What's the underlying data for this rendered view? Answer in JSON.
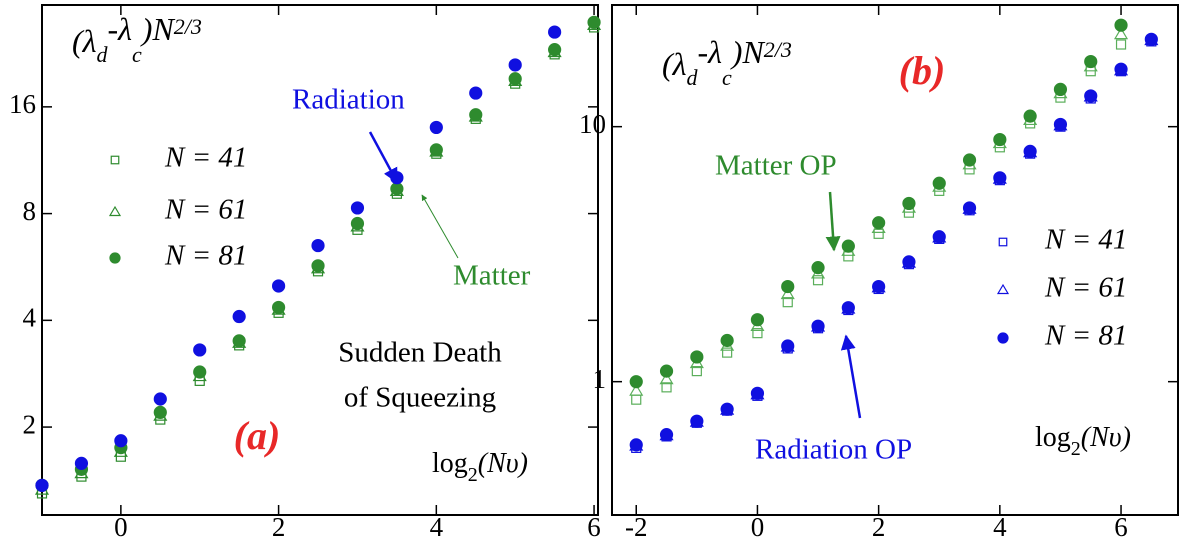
{
  "chart_data": [
    {
      "type": "scatter",
      "yscale": "log",
      "panel_label": "(a)",
      "ylabel": [
        "(λ",
        "d",
        "-λ",
        "c",
        ")N",
        "2/3"
      ],
      "xlabel": [
        "log",
        "2",
        "(Nυ)"
      ],
      "annotations": [
        "Radiation",
        "Matter",
        "Sudden Death",
        "of Squeezing"
      ],
      "xlim": [
        -1,
        6.05
      ],
      "ylim": [
        1.13,
        31
      ],
      "xticks": [
        0,
        2,
        4,
        6
      ],
      "yticks": [
        2,
        4,
        8,
        16
      ],
      "x": [
        -1,
        -0.5,
        0,
        0.5,
        1,
        1.5,
        2,
        2.5,
        3,
        3.5,
        4,
        4.5,
        5,
        5.5,
        6
      ],
      "series": [
        {
          "name": "N = 41",
          "color": "#2e8b2e",
          "marker": "square",
          "values": [
            1.3,
            1.45,
            1.65,
            2.1,
            2.7,
            3.4,
            4.2,
            5.5,
            7.2,
            9.1,
            11.8,
            14.8,
            18.6,
            22.5,
            26.8
          ]
        },
        {
          "name": "N = 61",
          "color": "#2e8b2e",
          "marker": "triangle",
          "values": [
            1.33,
            1.48,
            1.7,
            2.15,
            2.78,
            3.45,
            4.28,
            5.6,
            7.35,
            9.25,
            11.95,
            15.0,
            18.9,
            22.8,
            27.2
          ]
        },
        {
          "name": "N = 81",
          "color": "#2e8b2e",
          "marker": "circle",
          "values": [
            1.37,
            1.52,
            1.75,
            2.2,
            2.86,
            3.5,
            4.35,
            5.7,
            7.5,
            9.4,
            12.1,
            15.2,
            19.2,
            23.2,
            27.7
          ]
        },
        {
          "color": "#1010e0",
          "marker": "circle",
          "values": [
            1.37,
            1.58,
            1.83,
            2.4,
            3.3,
            4.1,
            5.0,
            6.5,
            8.3,
            10.1,
            14,
            17.5,
            21,
            26,
            null
          ]
        }
      ]
    },
    {
      "type": "scatter",
      "yscale": "log",
      "panel_label": "(b)",
      "ylabel": [
        "(λ",
        "d",
        "-λ",
        "c",
        ")N",
        "2/3"
      ],
      "xlabel": [
        "log",
        "2",
        "(Nυ)"
      ],
      "annotations": [
        "Matter OP",
        "Radiation OP"
      ],
      "xlim": [
        -2.4,
        6.94
      ],
      "ylim": [
        0.3,
        30
      ],
      "xticks": [
        -2,
        0,
        2,
        4,
        6
      ],
      "yticks": [
        1,
        10
      ],
      "x": [
        -2,
        -1.5,
        -1,
        -0.5,
        0,
        0.5,
        1,
        1.5,
        2,
        2.5,
        3,
        3.5,
        4,
        4.5,
        5,
        5.5,
        6,
        6.5
      ],
      "series": [
        {
          "color": "#5aae5a",
          "marker": "square",
          "values": [
            0.85,
            0.95,
            1.1,
            1.3,
            1.55,
            2.05,
            2.5,
            3.1,
            3.8,
            4.6,
            5.6,
            6.8,
            8.3,
            10.3,
            13,
            16.5,
            21,
            null
          ]
        },
        {
          "color": "#5aae5a",
          "marker": "triangle",
          "values": [
            0.92,
            1.02,
            1.18,
            1.38,
            1.65,
            2.2,
            2.65,
            3.25,
            4.0,
            4.8,
            5.8,
            7.1,
            8.6,
            10.6,
            13.5,
            17.2,
            23,
            null
          ]
        },
        {
          "color": "#2e8b2e",
          "marker": "circle",
          "values": [
            1.0,
            1.1,
            1.25,
            1.45,
            1.75,
            2.36,
            2.8,
            3.4,
            4.2,
            5.0,
            6.0,
            7.4,
            8.9,
            11,
            14,
            18,
            25,
            null
          ]
        },
        {
          "name": "N = 41",
          "color": "#1010e0",
          "marker": "square",
          "values": [
            0.55,
            0.61,
            0.69,
            0.77,
            0.88,
            1.35,
            1.62,
            1.91,
            2.31,
            2.89,
            3.63,
            4.7,
            6.17,
            7.84,
            10.0,
            12.9,
            16.5,
            21.6
          ]
        },
        {
          "name": "N = 61",
          "color": "#1010e0",
          "marker": "triangle",
          "values": [
            0.56,
            0.615,
            0.695,
            0.775,
            0.89,
            1.37,
            1.64,
            1.93,
            2.34,
            2.92,
            3.67,
            4.75,
            6.24,
            7.92,
            10.1,
            13.1,
            16.6,
            21.8
          ]
        },
        {
          "name": "N = 81",
          "color": "#1010e0",
          "marker": "circle",
          "values": [
            0.565,
            0.62,
            0.7,
            0.78,
            0.9,
            1.38,
            1.65,
            1.95,
            2.36,
            2.95,
            3.7,
            4.8,
            6.3,
            8.0,
            10.2,
            13.2,
            16.8,
            22
          ]
        }
      ]
    }
  ]
}
